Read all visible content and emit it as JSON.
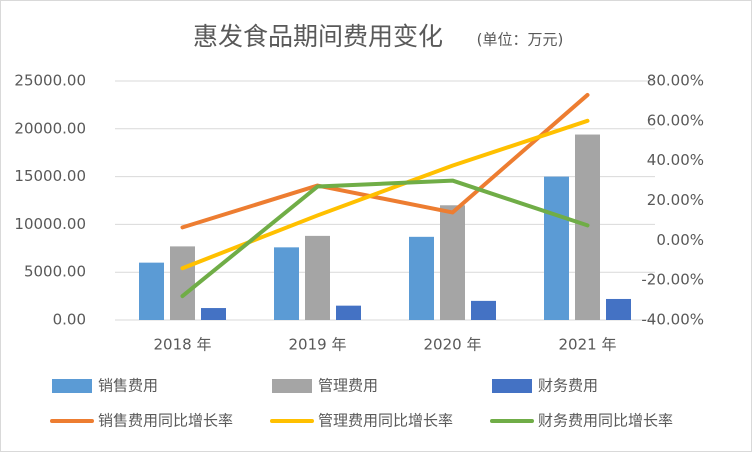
{
  "chart_data": {
    "type": "bar",
    "title": "惠发食品期间费用变化",
    "subtitle": "(单位：万元)",
    "categories": [
      "2018 年",
      "2019 年",
      "2020 年",
      "2021 年"
    ],
    "series": [
      {
        "name": "销售费用",
        "type": "bar",
        "color": "#5b9bd5",
        "values": [
          6000,
          7600,
          8700,
          15000
        ]
      },
      {
        "name": "管理费用",
        "type": "bar",
        "color": "#a5a5a5",
        "values": [
          7700,
          8800,
          12000,
          19400
        ]
      },
      {
        "name": "财务费用",
        "type": "bar",
        "color": "#4472c4",
        "values": [
          1250,
          1500,
          2000,
          2200
        ]
      },
      {
        "name": "销售费用同比增长率",
        "type": "line",
        "axis": "y2",
        "color": "#ed7d31",
        "values": [
          6.5,
          27.5,
          14,
          73
        ]
      },
      {
        "name": "管理费用同比增长率",
        "type": "line",
        "axis": "y2",
        "color": "#ffc000",
        "values": [
          -14,
          12.5,
          37.5,
          60
        ]
      },
      {
        "name": "财务费用同比增长率",
        "type": "line",
        "axis": "y2",
        "color": "#70ad47",
        "values": [
          -28,
          27,
          30,
          7.5
        ]
      }
    ],
    "ylim": [
      0,
      25000
    ],
    "yticks": [
      {
        "value": 0,
        "label": "0.00"
      },
      {
        "value": 5000,
        "label": "5000.00"
      },
      {
        "value": 10000,
        "label": "10000.00"
      },
      {
        "value": 15000,
        "label": "15000.00"
      },
      {
        "value": 20000,
        "label": "20000.00"
      },
      {
        "value": 25000,
        "label": "25000.00"
      }
    ],
    "y2lim": [
      -40,
      80
    ],
    "y2ticks": [
      {
        "value": -40,
        "label": "-40.00%"
      },
      {
        "value": -20,
        "label": "-20.00%"
      },
      {
        "value": 0,
        "label": "0.00%"
      },
      {
        "value": 20,
        "label": "20.00%"
      },
      {
        "value": 40,
        "label": "40.00%"
      },
      {
        "value": 60,
        "label": "60.00%"
      },
      {
        "value": 80,
        "label": "80.00%"
      }
    ],
    "grid": true,
    "legend": "bottom"
  }
}
